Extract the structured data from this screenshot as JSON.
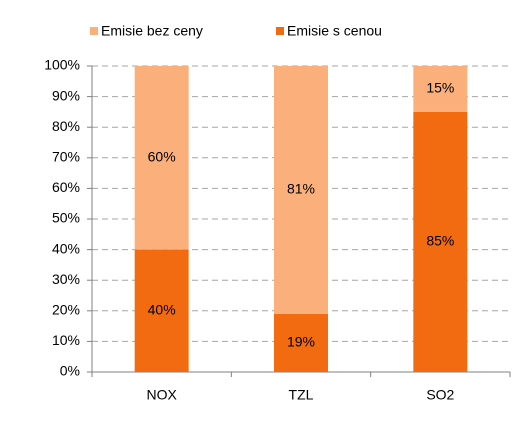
{
  "chart_data": {
    "type": "stacked_bar",
    "categories": [
      "NOX",
      "TZL",
      "SO2"
    ],
    "series": [
      {
        "name": "Emisie s cenou",
        "color": "#f26b10",
        "values": [
          40,
          19,
          85
        ],
        "value_labels": [
          "40%",
          "19%",
          "85%"
        ]
      },
      {
        "name": "Emisie bez ceny",
        "color": "#fbb07c",
        "values": [
          60,
          81,
          15
        ],
        "value_labels": [
          "60%",
          "81%",
          "15%"
        ]
      }
    ],
    "ylim": [
      0,
      100
    ],
    "yticks": [
      {
        "value": 0,
        "label": "0%"
      },
      {
        "value": 10,
        "label": "10%"
      },
      {
        "value": 20,
        "label": "20%"
      },
      {
        "value": 30,
        "label": "30%"
      },
      {
        "value": 40,
        "label": "40%"
      },
      {
        "value": 50,
        "label": "50%"
      },
      {
        "value": 60,
        "label": "60%"
      },
      {
        "value": 70,
        "label": "70%"
      },
      {
        "value": 80,
        "label": "80%"
      },
      {
        "value": 90,
        "label": "90%"
      },
      {
        "value": 100,
        "label": "100%"
      }
    ],
    "grid": true,
    "legend": "top"
  }
}
